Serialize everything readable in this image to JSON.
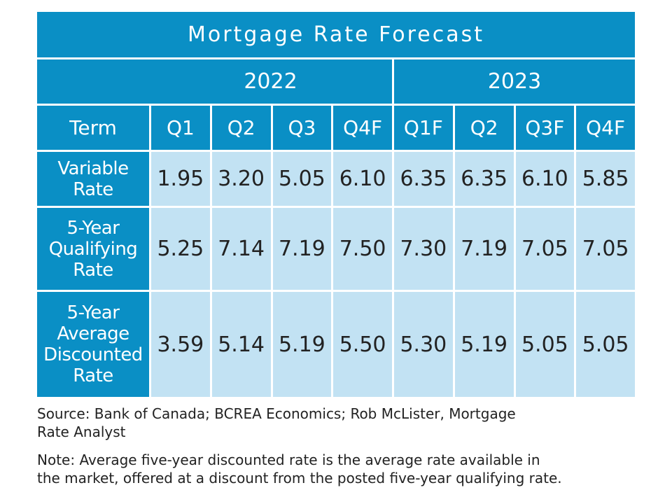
{
  "chart_data": {
    "type": "table",
    "title": "Mortgage Rate Forecast",
    "year_groups": [
      {
        "label": "2022",
        "span": 4
      },
      {
        "label": "2023",
        "span": 4
      }
    ],
    "header": {
      "term_label": "Term",
      "columns": [
        "Q1",
        "Q2",
        "Q3",
        "Q4F",
        "Q1F",
        "Q2",
        "Q3F",
        "Q4F"
      ]
    },
    "rows": [
      {
        "label_lines": [
          "Variable",
          "Rate"
        ],
        "values": [
          "1.95",
          "3.20",
          "5.05",
          "6.10",
          "6.35",
          "6.35",
          "6.10",
          "5.85"
        ]
      },
      {
        "label_lines": [
          "5-Year",
          "Qualifying",
          "Rate"
        ],
        "values": [
          "5.25",
          "7.14",
          "7.19",
          "7.50",
          "7.30",
          "7.19",
          "7.05",
          "7.05"
        ]
      },
      {
        "label_lines": [
          "5-Year",
          "Average",
          "Discounted",
          "Rate"
        ],
        "values": [
          "3.59",
          "5.14",
          "5.19",
          "5.50",
          "5.30",
          "5.19",
          "5.05",
          "5.05"
        ]
      }
    ]
  },
  "notes": {
    "source_lines": [
      "Source: Bank of Canada; BCREA Economics; Rob McLister, Mortgage",
      "Rate Analyst"
    ],
    "note_lines": [
      "Note: Average five-year discounted rate is the average rate available in",
      "the market, offered at a discount from the posted five-year qualifying rate."
    ]
  },
  "colors": {
    "header_blue": "#0a8fc5",
    "cell_light_blue": "#c2e2f3",
    "text_dark": "#222222",
    "text_white": "#ffffff"
  }
}
